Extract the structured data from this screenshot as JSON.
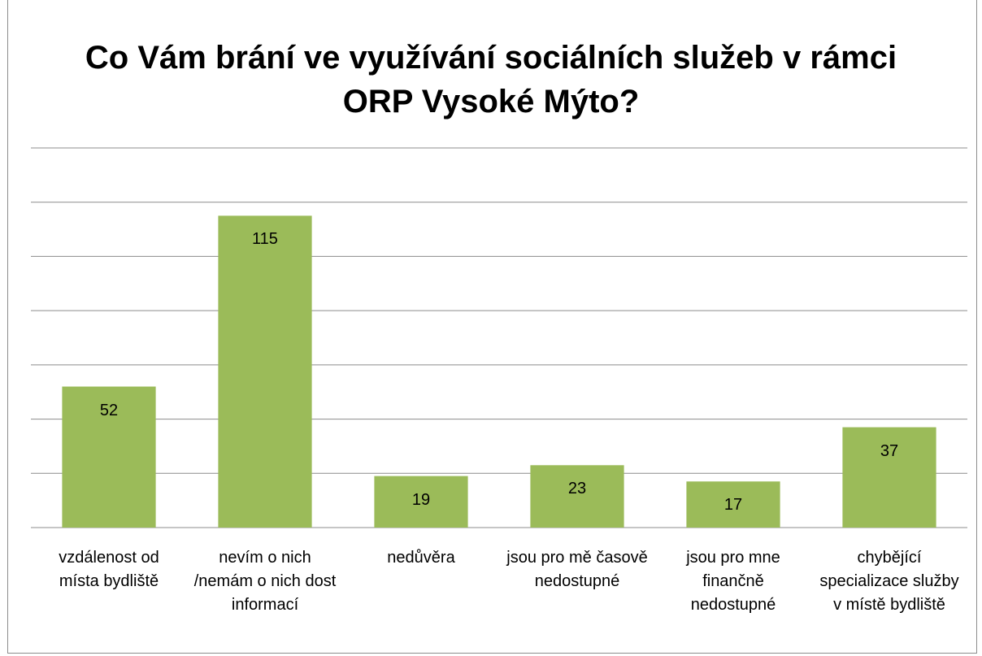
{
  "chart_data": {
    "type": "bar",
    "title": "Co Vám brání ve využívání sociálních služeb v rámci ORP Vysoké Mýto?",
    "categories": [
      "vzdálenost od místa bydliště",
      "nevím o nich /nemám o nich dost informací",
      "nedůvěra",
      "jsou pro mě časově nedostupné",
      "jsou pro mne finančně nedostupné",
      "chybějící specializace služby v místě bydliště"
    ],
    "values": [
      52,
      115,
      19,
      23,
      17,
      37
    ],
    "color": "#9bbb59",
    "ylim": [
      0,
      140
    ],
    "yticks": [
      0,
      20,
      40,
      60,
      80,
      100,
      120,
      140
    ],
    "grid": true
  }
}
